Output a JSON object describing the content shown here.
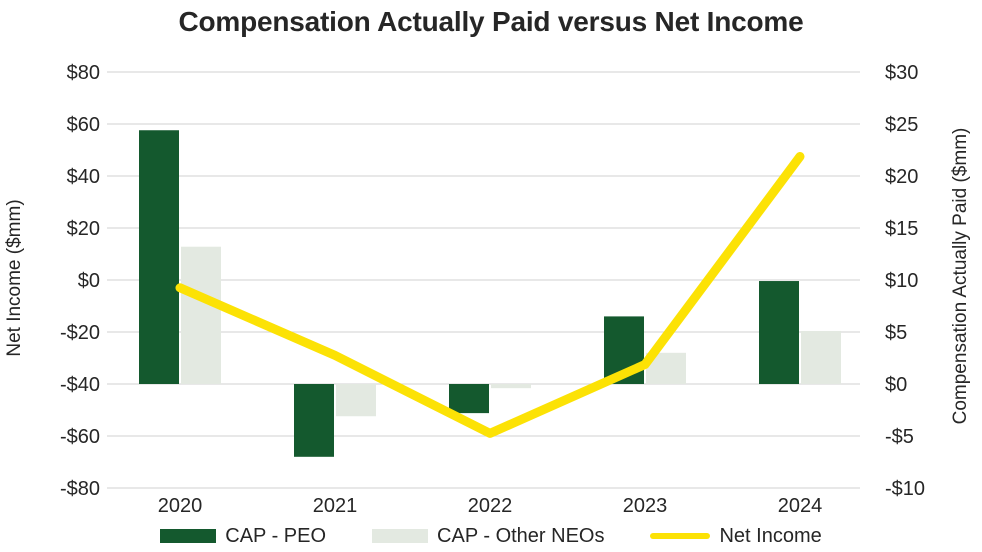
{
  "title": "Compensation Actually Paid versus Net Income",
  "left_axis": {
    "label": "Net Income ($mm)",
    "min": -80,
    "max": 80,
    "step": 20,
    "ticks": [
      "$80",
      "$60",
      "$40",
      "$20",
      "$0",
      "-$20",
      "-$40",
      "-$60",
      "-$80"
    ],
    "tick_values": [
      80,
      60,
      40,
      20,
      0,
      -20,
      -40,
      -60,
      -80
    ]
  },
  "right_axis": {
    "label": "Compensation Actually Paid ($mm)",
    "min": -10,
    "max": 30,
    "step": 5,
    "ticks": [
      "$30",
      "$25",
      "$20",
      "$15",
      "$10",
      "$5",
      "$0",
      "-$5",
      "-$10"
    ],
    "tick_values": [
      30,
      25,
      20,
      15,
      10,
      5,
      0,
      -5,
      -10
    ]
  },
  "legend": {
    "items": [
      {
        "label": "CAP - PEO",
        "type": "rect",
        "color": "#14592E"
      },
      {
        "label": "CAP - Other NEOs",
        "type": "rect",
        "color": "#E3E9E1"
      },
      {
        "label": "Net Income",
        "type": "line",
        "color": "#FCE205"
      }
    ]
  },
  "colors": {
    "cap_peo": "#14592E",
    "cap_other_neos": "#E3E9E1",
    "net_income_line": "#FCE205",
    "gridline": "#D9D9D9",
    "text": "#262626",
    "background": "#FFFFFF"
  },
  "chart_data": {
    "type": "bar",
    "subtype": "combo-bar-line-dual-axis",
    "title": "Compensation Actually Paid versus Net Income",
    "categories": [
      "2020",
      "2021",
      "2022",
      "2023",
      "2024"
    ],
    "series": [
      {
        "name": "CAP - PEO",
        "type": "bar",
        "axis": "right",
        "color": "#14592E",
        "values": [
          24.4,
          -7.0,
          -2.8,
          6.5,
          9.9
        ]
      },
      {
        "name": "CAP - Other NEOs",
        "type": "bar",
        "axis": "right",
        "color": "#E3E9E1",
        "values": [
          13.2,
          -3.1,
          -0.4,
          3.0,
          5.1
        ]
      },
      {
        "name": "Net Income",
        "type": "line",
        "axis": "left",
        "color": "#FCE205",
        "values": [
          -3,
          -29,
          -59,
          -32.5,
          47.5
        ]
      }
    ],
    "left_ylabel": "Net Income ($mm)",
    "left_ylim": [
      -80,
      80
    ],
    "right_ylabel": "Compensation Actually Paid ($mm)",
    "right_ylim": [
      -10,
      30
    ],
    "grid": true,
    "legend_position": "bottom"
  }
}
